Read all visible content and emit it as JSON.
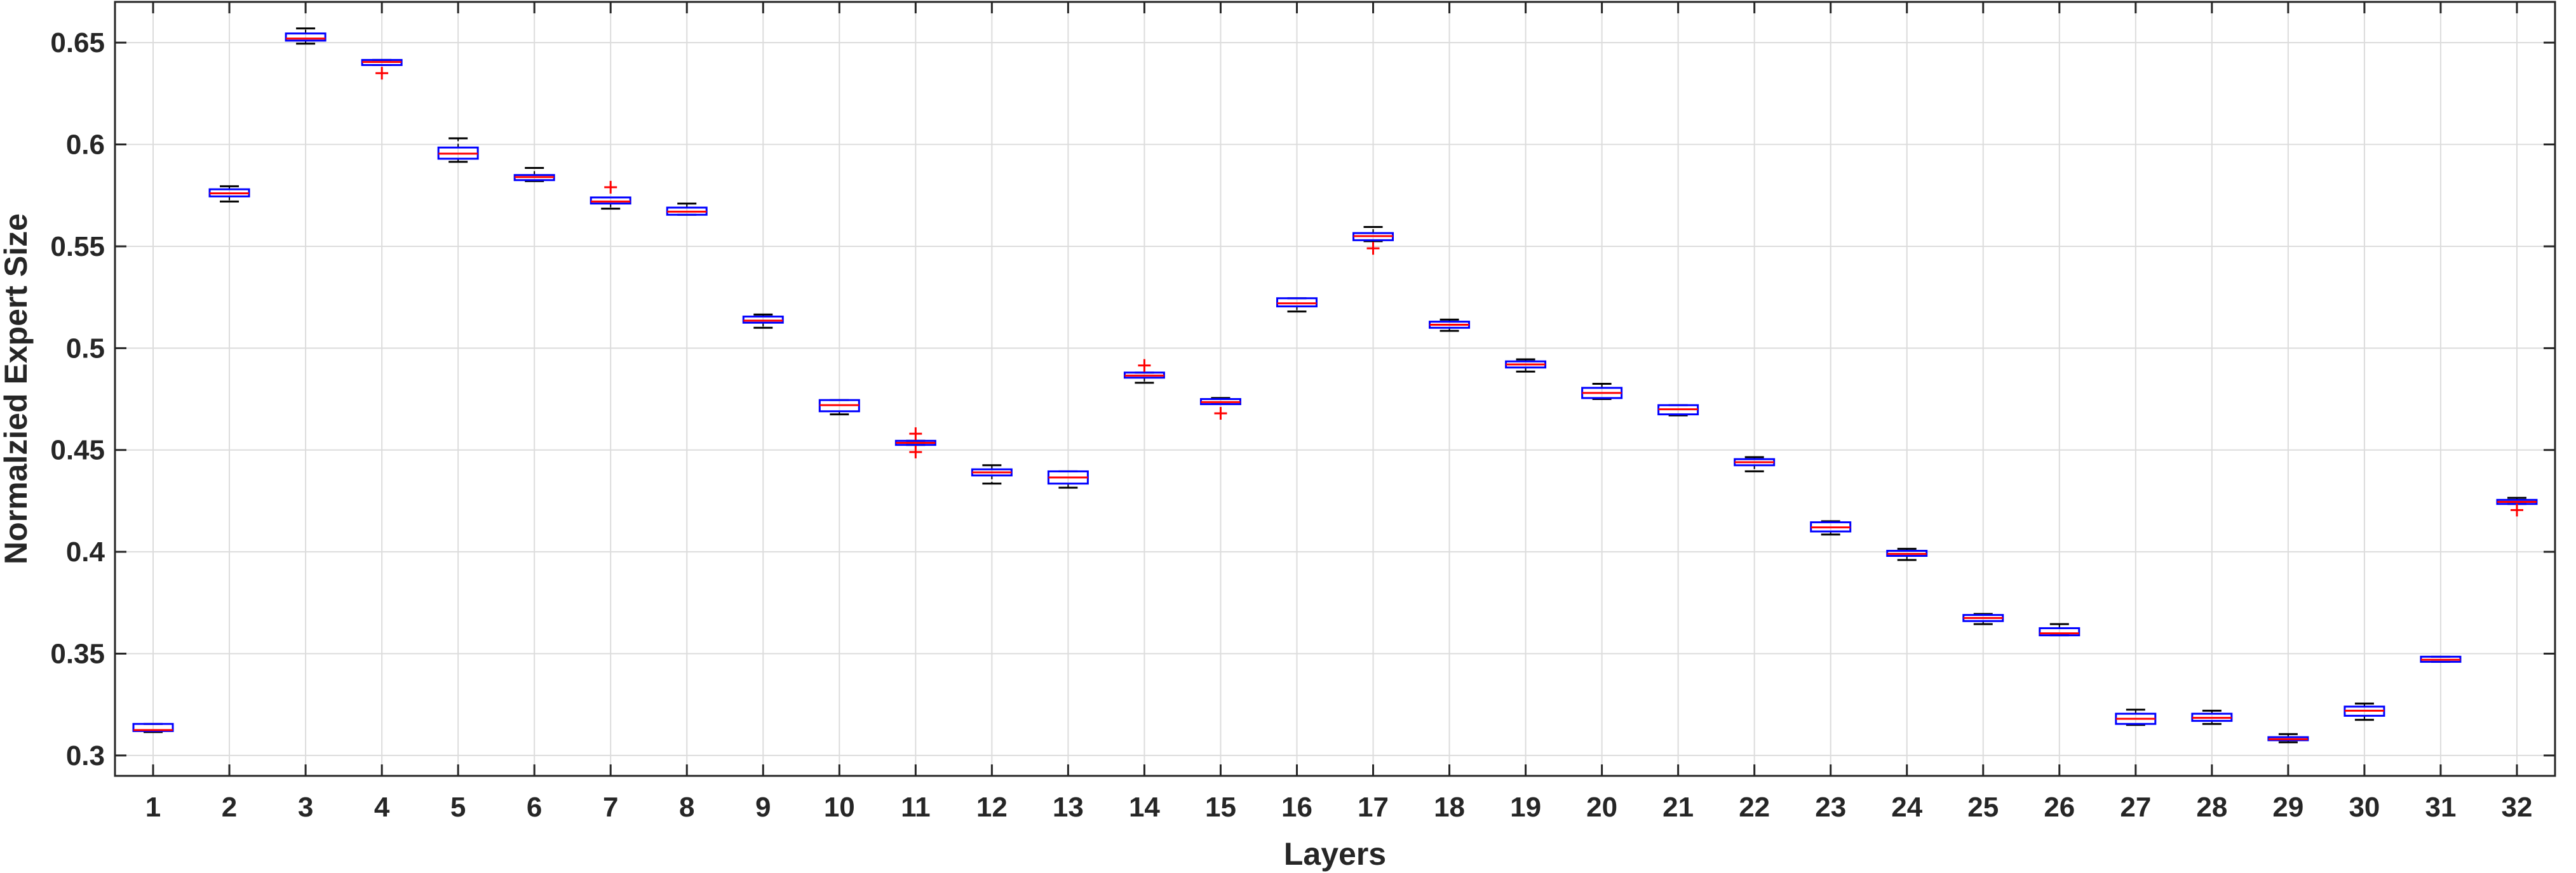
{
  "chart_data": {
    "type": "box",
    "title": "",
    "xlabel": "Layers",
    "ylabel": "Normalzied Expert Size",
    "ylim": [
      0.29,
      0.67
    ],
    "grid": true,
    "categories": [
      "1",
      "2",
      "3",
      "4",
      "5",
      "6",
      "7",
      "8",
      "9",
      "10",
      "11",
      "12",
      "13",
      "14",
      "15",
      "16",
      "17",
      "18",
      "19",
      "20",
      "21",
      "22",
      "23",
      "24",
      "25",
      "26",
      "27",
      "28",
      "29",
      "30",
      "31",
      "32"
    ],
    "yticks": [
      0.3,
      0.35,
      0.4,
      0.45,
      0.5,
      0.55,
      0.6,
      0.65
    ],
    "ytick_labels": [
      "0.3",
      "0.35",
      "0.4",
      "0.45",
      "0.5",
      "0.55",
      "0.6",
      "0.65"
    ],
    "boxes": [
      {
        "layer": "1",
        "whisker_low": 0.3115,
        "q1": 0.312,
        "median": 0.3125,
        "q3": 0.3155,
        "whisker_high": 0.3155,
        "outliers": []
      },
      {
        "layer": "2",
        "whisker_low": 0.572,
        "q1": 0.5745,
        "median": 0.576,
        "q3": 0.578,
        "whisker_high": 0.5795,
        "outliers": []
      },
      {
        "layer": "3",
        "whisker_low": 0.6495,
        "q1": 0.651,
        "median": 0.652,
        "q3": 0.6545,
        "whisker_high": 0.657,
        "outliers": []
      },
      {
        "layer": "4",
        "whisker_low": 0.639,
        "q1": 0.639,
        "median": 0.6405,
        "q3": 0.6415,
        "whisker_high": 0.6415,
        "outliers": [
          0.635
        ]
      },
      {
        "layer": "5",
        "whisker_low": 0.5915,
        "q1": 0.593,
        "median": 0.5955,
        "q3": 0.5985,
        "whisker_high": 0.603,
        "outliers": []
      },
      {
        "layer": "6",
        "whisker_low": 0.582,
        "q1": 0.5825,
        "median": 0.584,
        "q3": 0.585,
        "whisker_high": 0.5885,
        "outliers": []
      },
      {
        "layer": "7",
        "whisker_low": 0.5685,
        "q1": 0.571,
        "median": 0.572,
        "q3": 0.574,
        "whisker_high": 0.574,
        "outliers": [
          0.579
        ]
      },
      {
        "layer": "8",
        "whisker_low": 0.5655,
        "q1": 0.5655,
        "median": 0.567,
        "q3": 0.569,
        "whisker_high": 0.571,
        "outliers": []
      },
      {
        "layer": "9",
        "whisker_low": 0.51,
        "q1": 0.5125,
        "median": 0.5135,
        "q3": 0.5155,
        "whisker_high": 0.5165,
        "outliers": []
      },
      {
        "layer": "10",
        "whisker_low": 0.4675,
        "q1": 0.469,
        "median": 0.472,
        "q3": 0.4745,
        "whisker_high": 0.4745,
        "outliers": []
      },
      {
        "layer": "11",
        "whisker_low": 0.4525,
        "q1": 0.4525,
        "median": 0.4535,
        "q3": 0.4545,
        "whisker_high": 0.4545,
        "outliers": [
          0.458,
          0.449
        ]
      },
      {
        "layer": "12",
        "whisker_low": 0.4335,
        "q1": 0.4375,
        "median": 0.439,
        "q3": 0.4405,
        "whisker_high": 0.4425,
        "outliers": []
      },
      {
        "layer": "13",
        "whisker_low": 0.4315,
        "q1": 0.4335,
        "median": 0.4365,
        "q3": 0.4395,
        "whisker_high": 0.4395,
        "outliers": []
      },
      {
        "layer": "14",
        "whisker_low": 0.483,
        "q1": 0.4855,
        "median": 0.4865,
        "q3": 0.488,
        "whisker_high": 0.488,
        "outliers": [
          0.4915
        ]
      },
      {
        "layer": "15",
        "whisker_low": 0.4725,
        "q1": 0.4725,
        "median": 0.4735,
        "q3": 0.475,
        "whisker_high": 0.4755,
        "outliers": [
          0.468
        ]
      },
      {
        "layer": "16",
        "whisker_low": 0.518,
        "q1": 0.5205,
        "median": 0.522,
        "q3": 0.5245,
        "whisker_high": 0.5245,
        "outliers": []
      },
      {
        "layer": "17",
        "whisker_low": 0.5525,
        "q1": 0.553,
        "median": 0.555,
        "q3": 0.5565,
        "whisker_high": 0.5595,
        "outliers": [
          0.549
        ]
      },
      {
        "layer": "18",
        "whisker_low": 0.5085,
        "q1": 0.51,
        "median": 0.5115,
        "q3": 0.513,
        "whisker_high": 0.514,
        "outliers": []
      },
      {
        "layer": "19",
        "whisker_low": 0.4885,
        "q1": 0.4905,
        "median": 0.492,
        "q3": 0.4935,
        "whisker_high": 0.4945,
        "outliers": []
      },
      {
        "layer": "20",
        "whisker_low": 0.475,
        "q1": 0.4755,
        "median": 0.478,
        "q3": 0.4805,
        "whisker_high": 0.4825,
        "outliers": []
      },
      {
        "layer": "21",
        "whisker_low": 0.467,
        "q1": 0.4675,
        "median": 0.47,
        "q3": 0.472,
        "whisker_high": 0.472,
        "outliers": []
      },
      {
        "layer": "22",
        "whisker_low": 0.4395,
        "q1": 0.4425,
        "median": 0.444,
        "q3": 0.4455,
        "whisker_high": 0.4465,
        "outliers": []
      },
      {
        "layer": "23",
        "whisker_low": 0.4085,
        "q1": 0.41,
        "median": 0.412,
        "q3": 0.4145,
        "whisker_high": 0.415,
        "outliers": []
      },
      {
        "layer": "24",
        "whisker_low": 0.396,
        "q1": 0.398,
        "median": 0.399,
        "q3": 0.4005,
        "whisker_high": 0.4015,
        "outliers": []
      },
      {
        "layer": "25",
        "whisker_low": 0.3645,
        "q1": 0.366,
        "median": 0.3675,
        "q3": 0.369,
        "whisker_high": 0.3695,
        "outliers": []
      },
      {
        "layer": "26",
        "whisker_low": 0.359,
        "q1": 0.359,
        "median": 0.36,
        "q3": 0.3625,
        "whisker_high": 0.3645,
        "outliers": []
      },
      {
        "layer": "27",
        "whisker_low": 0.315,
        "q1": 0.3155,
        "median": 0.318,
        "q3": 0.3205,
        "whisker_high": 0.3225,
        "outliers": []
      },
      {
        "layer": "28",
        "whisker_low": 0.3155,
        "q1": 0.317,
        "median": 0.3185,
        "q3": 0.3205,
        "whisker_high": 0.322,
        "outliers": []
      },
      {
        "layer": "29",
        "whisker_low": 0.3065,
        "q1": 0.3075,
        "median": 0.308,
        "q3": 0.309,
        "whisker_high": 0.3105,
        "outliers": []
      },
      {
        "layer": "30",
        "whisker_low": 0.3175,
        "q1": 0.3195,
        "median": 0.322,
        "q3": 0.324,
        "whisker_high": 0.3255,
        "outliers": []
      },
      {
        "layer": "31",
        "whisker_low": 0.346,
        "q1": 0.346,
        "median": 0.347,
        "q3": 0.3485,
        "whisker_high": 0.3485,
        "outliers": []
      },
      {
        "layer": "32",
        "whisker_low": 0.4235,
        "q1": 0.4235,
        "median": 0.4245,
        "q3": 0.4255,
        "whisker_high": 0.4265,
        "outliers": [
          0.4205
        ]
      }
    ],
    "colors": {
      "box": "#0000ff",
      "median": "#ff0000",
      "whisker": "#000000",
      "outlier": "#ff0000",
      "grid": "#dcdcdc",
      "axis": "#262626"
    }
  }
}
